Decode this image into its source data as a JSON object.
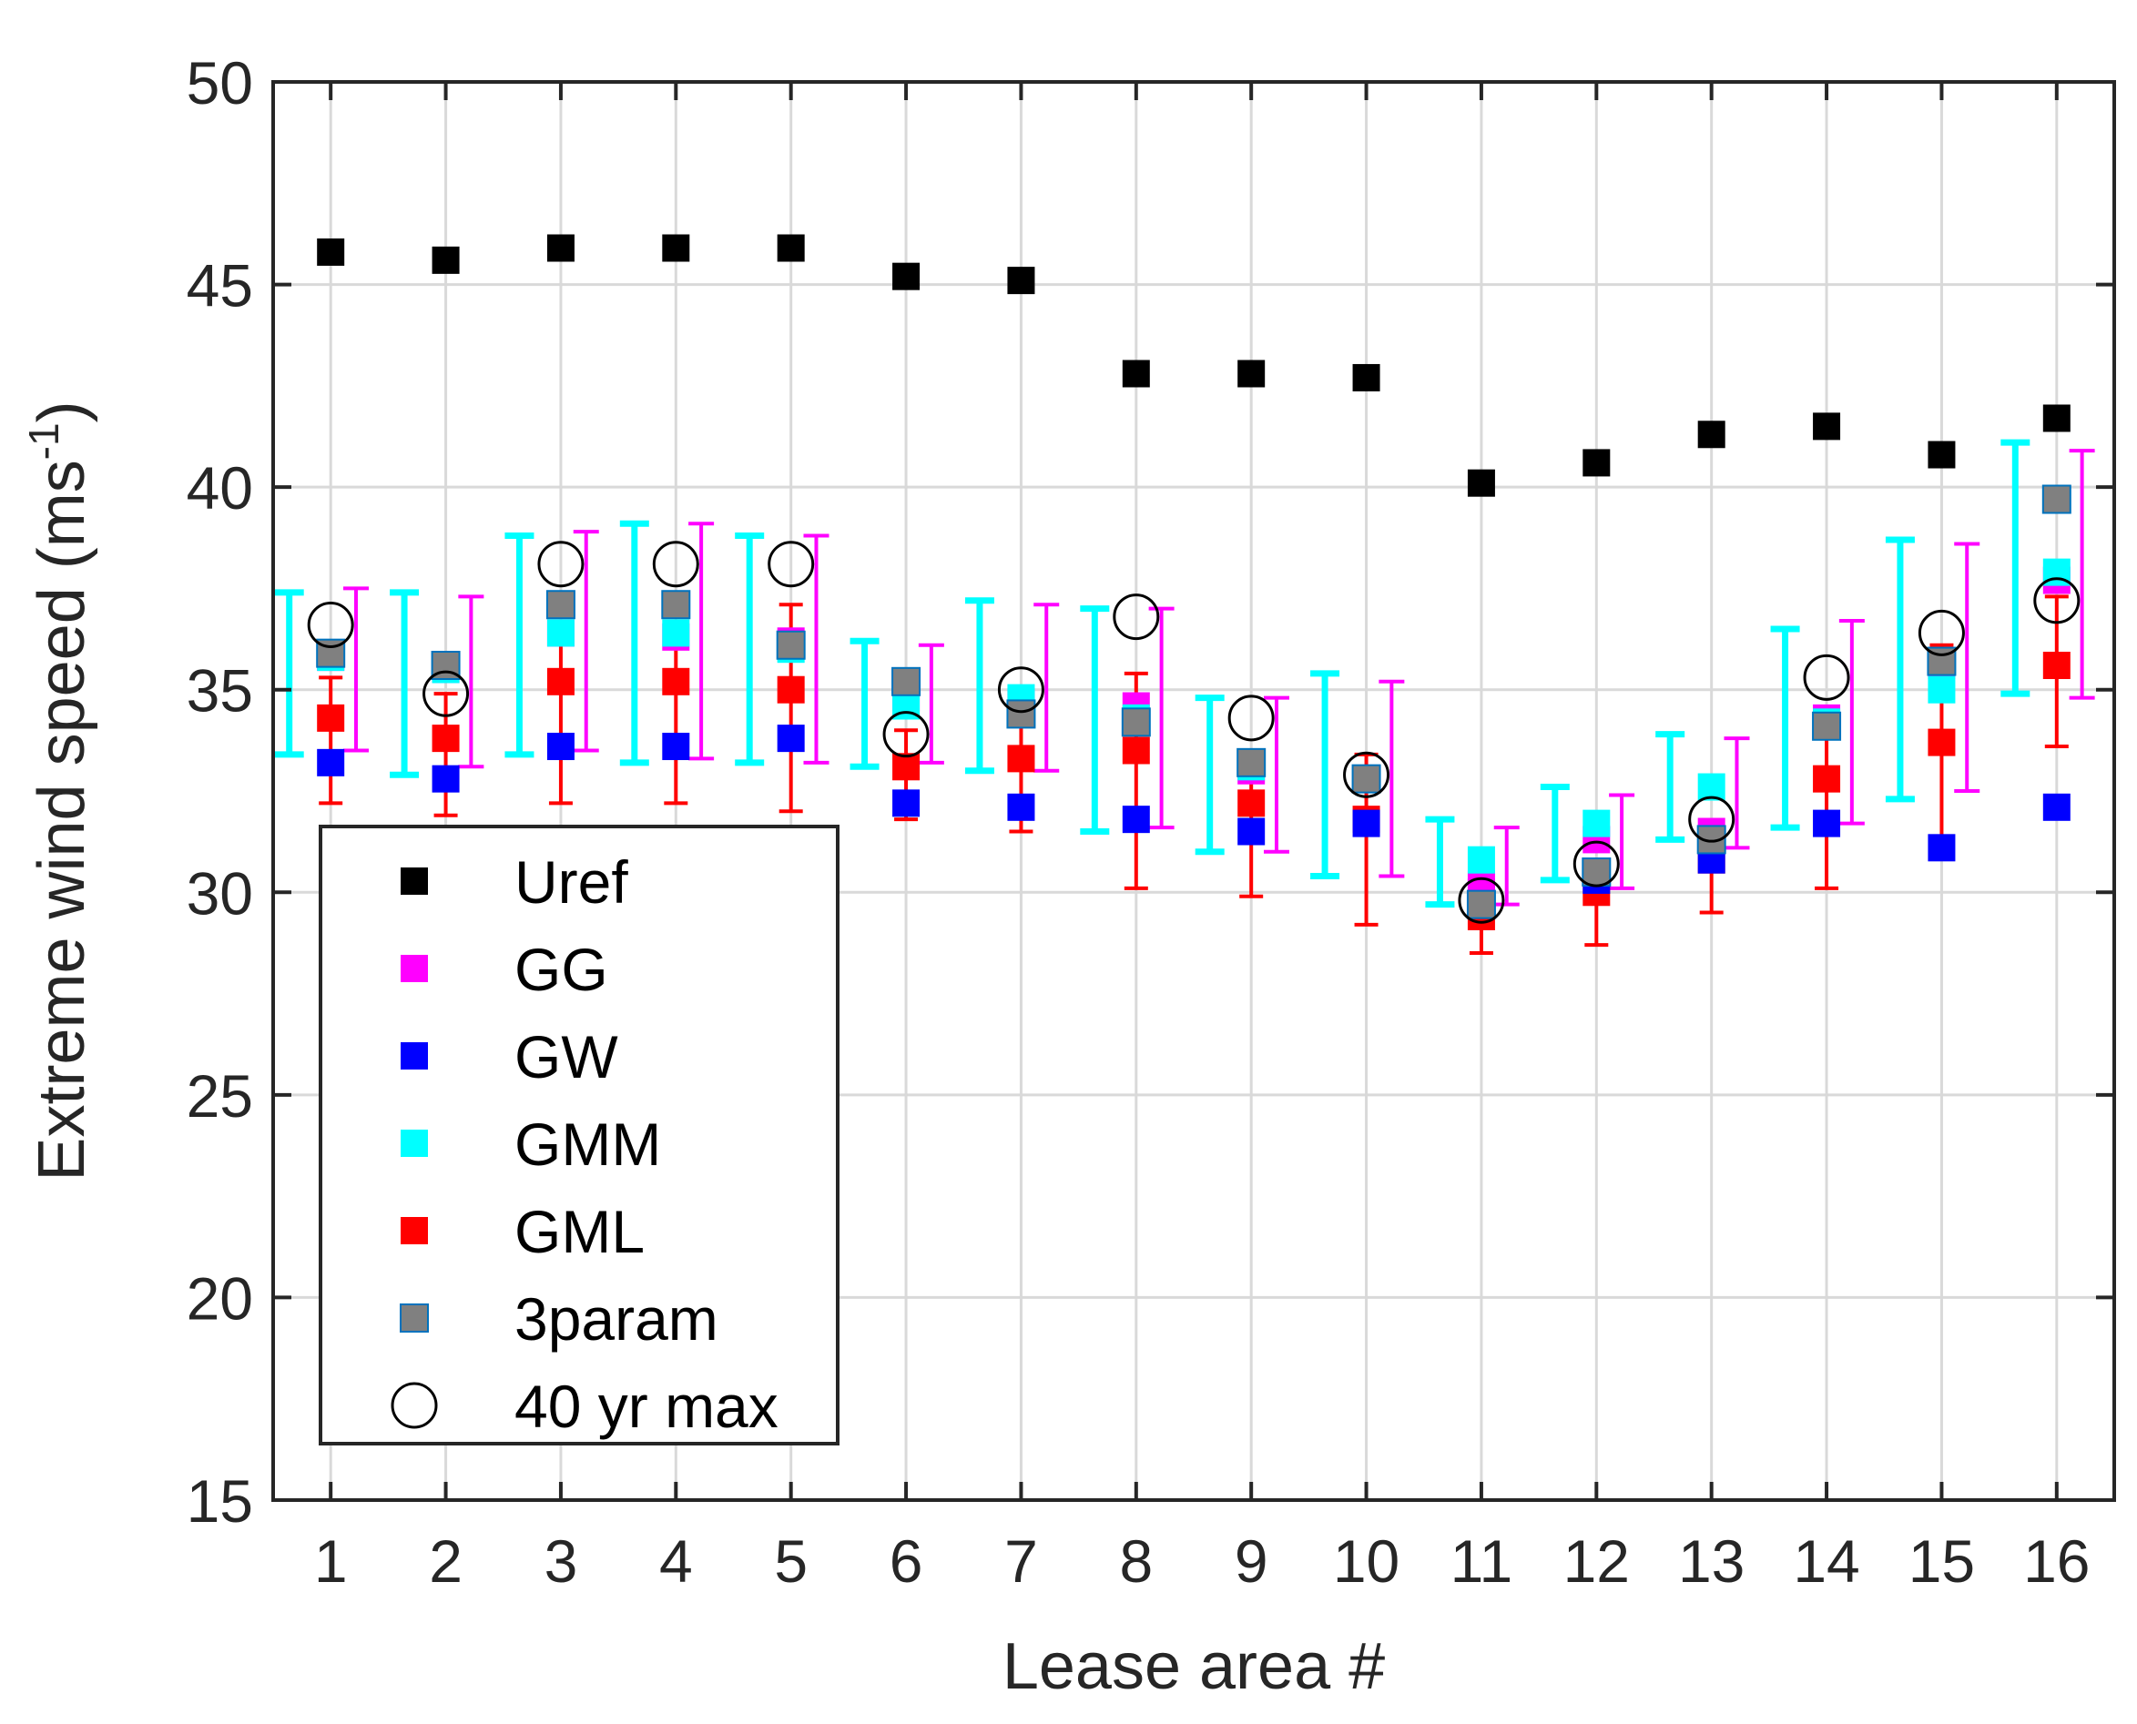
{
  "chart_data": {
    "type": "scatter",
    "title": "",
    "xlabel": "Lease area #",
    "ylabel_main": "Extreme wind speed (ms",
    "ylabel_sup": "-1",
    "ylabel_close": ")",
    "xlim": [
      0.5,
      16.5
    ],
    "ylim": [
      15,
      50
    ],
    "grid": true,
    "legend_position": "bottom-left",
    "categories": [
      "1",
      "2",
      "3",
      "4",
      "5",
      "6",
      "7",
      "8",
      "9",
      "10",
      "11",
      "12",
      "13",
      "14",
      "15",
      "16"
    ],
    "y_ticks": [
      "15",
      "20",
      "25",
      "30",
      "35",
      "40",
      "45",
      "50"
    ],
    "series": [
      {
        "name": "Uref",
        "marker": "square",
        "color": "#000000",
        "values": [
          45.8,
          45.6,
          45.9,
          45.9,
          45.9,
          45.2,
          45.1,
          42.8,
          42.8,
          42.7,
          40.1,
          40.6,
          41.3,
          41.5,
          40.8,
          41.7
        ]
      },
      {
        "name": "GG",
        "marker": "square",
        "color": "#ff00ff",
        "values": [
          35.8,
          35.5,
          36.4,
          36.3,
          36.2,
          34.8,
          34.7,
          34.6,
          33.0,
          32.8,
          30.2,
          31.3,
          31.5,
          34.3,
          35.6,
          37.7
        ],
        "err_low": [
          33.5,
          33.1,
          33.5,
          33.3,
          33.2,
          33.2,
          33.0,
          31.6,
          31.0,
          30.4,
          29.7,
          30.1,
          31.1,
          31.7,
          32.5,
          34.8
        ],
        "err_high": [
          37.5,
          37.3,
          38.9,
          39.1,
          38.8,
          36.1,
          37.1,
          37.0,
          34.8,
          35.2,
          31.6,
          32.4,
          33.8,
          36.7,
          38.6,
          40.9
        ]
      },
      {
        "name": "GW",
        "marker": "square",
        "color": "#0000ff",
        "values": [
          33.2,
          32.8,
          33.6,
          33.6,
          33.8,
          32.2,
          32.1,
          31.8,
          31.5,
          31.7,
          30.0,
          30.3,
          30.8,
          31.7,
          31.1,
          32.1
        ]
      },
      {
        "name": "GMM",
        "marker": "square",
        "color": "#00ffff",
        "values": [
          35.8,
          35.5,
          36.4,
          36.4,
          36.0,
          34.6,
          34.8,
          34.3,
          33.1,
          32.8,
          30.8,
          31.7,
          32.6,
          34.2,
          35.0,
          37.9
        ],
        "err_low": [
          33.4,
          32.9,
          33.4,
          33.2,
          33.2,
          33.1,
          33.0,
          31.5,
          31.0,
          30.4,
          29.7,
          30.3,
          31.3,
          31.6,
          32.3,
          34.9
        ],
        "err_high": [
          37.4,
          37.4,
          38.8,
          39.1,
          38.8,
          36.2,
          37.2,
          37.0,
          34.8,
          35.4,
          31.8,
          32.6,
          33.9,
          36.5,
          38.7,
          41.1
        ]
      },
      {
        "name": "GML",
        "marker": "square",
        "color": "#ff0000",
        "values": [
          34.3,
          33.8,
          35.2,
          35.2,
          35.0,
          33.1,
          33.3,
          33.5,
          32.2,
          31.8,
          29.4,
          30.0,
          30.8,
          32.8,
          33.7,
          35.6
        ],
        "err_low": [
          32.2,
          31.9,
          32.2,
          32.2,
          32.0,
          31.8,
          31.5,
          30.1,
          29.9,
          29.2,
          28.5,
          28.7,
          29.5,
          30.1,
          31.0,
          33.6
        ],
        "err_high": [
          35.3,
          34.9,
          36.3,
          36.4,
          37.1,
          34.0,
          34.3,
          35.4,
          33.0,
          33.4,
          30.0,
          30.7,
          31.6,
          33.9,
          36.1,
          37.3
        ]
      },
      {
        "name": "3param",
        "marker": "square",
        "color": "#808080",
        "edge_color": "#0072bd",
        "values": [
          35.9,
          35.6,
          37.1,
          37.1,
          36.1,
          35.2,
          34.4,
          34.2,
          33.2,
          32.8,
          29.7,
          30.5,
          31.3,
          34.1,
          35.7,
          39.7
        ]
      },
      {
        "name": "40 yr max",
        "marker": "circle",
        "color": "#000000",
        "values": [
          36.6,
          34.9,
          38.1,
          38.1,
          38.1,
          33.9,
          35.0,
          36.8,
          34.3,
          32.9,
          29.8,
          30.7,
          31.8,
          35.3,
          36.4,
          37.2
        ]
      }
    ]
  }
}
